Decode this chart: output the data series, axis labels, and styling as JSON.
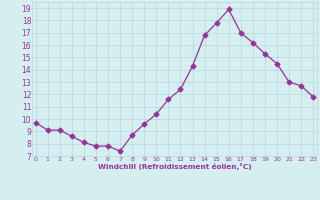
{
  "xlabel": "Windchill (Refroidissement éolien,°C)",
  "x": [
    0,
    1,
    2,
    3,
    4,
    5,
    6,
    7,
    8,
    9,
    10,
    11,
    12,
    13,
    14,
    15,
    16,
    17,
    18,
    19,
    20,
    21,
    22,
    23
  ],
  "y": [
    9.7,
    9.1,
    9.1,
    8.6,
    8.1,
    7.8,
    7.8,
    7.4,
    8.7,
    9.6,
    10.4,
    11.6,
    12.4,
    14.3,
    16.8,
    17.8,
    18.9,
    17.0,
    16.2,
    15.3,
    14.5,
    13.0,
    12.7,
    11.8
  ],
  "line_color": "#993399",
  "marker": "D",
  "marker_size": 2.5,
  "background_color": "#d5eef0",
  "grid_color": "#b8d8dc",
  "tick_color": "#993399",
  "label_color": "#993399",
  "ylim": [
    7,
    19.5
  ],
  "yticks": [
    7,
    8,
    9,
    10,
    11,
    12,
    13,
    14,
    15,
    16,
    17,
    18,
    19
  ],
  "xticks": [
    0,
    1,
    2,
    3,
    4,
    5,
    6,
    7,
    8,
    9,
    10,
    11,
    12,
    13,
    14,
    15,
    16,
    17,
    18,
    19,
    20,
    21,
    22,
    23
  ],
  "xlim": [
    -0.3,
    23.3
  ]
}
